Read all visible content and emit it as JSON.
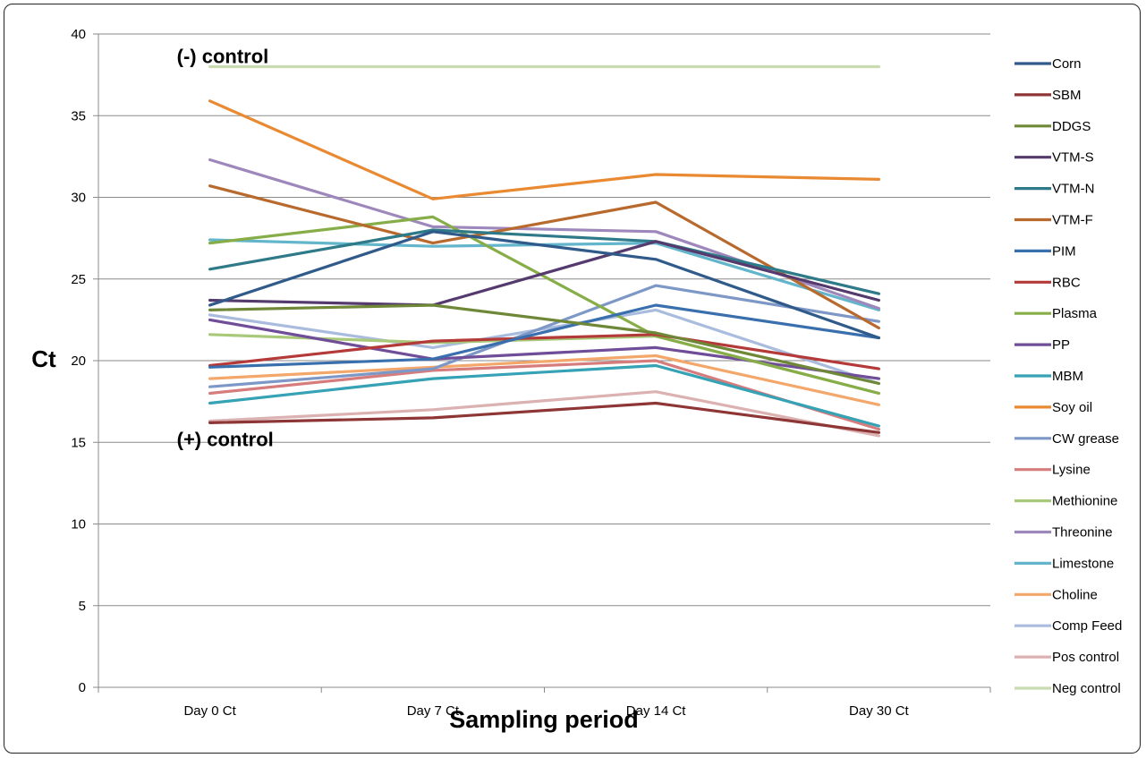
{
  "chart_data": {
    "type": "line",
    "title": "",
    "xlabel": "Sampling period",
    "ylabel": "Ct",
    "ylim": [
      0,
      40
    ],
    "yticks": [
      0,
      5,
      10,
      15,
      20,
      25,
      30,
      35,
      40
    ],
    "categories": [
      "Day 0 Ct",
      "Day 7 Ct",
      "Day 14 Ct",
      "Day 30 Ct"
    ],
    "grid": true,
    "legend_position": "right",
    "annotations": [
      {
        "text": "(-) control",
        "x": "Day 0 Ct",
        "y": 38
      },
      {
        "text": "(+) control",
        "x": "Day 0 Ct",
        "y": 16.3
      }
    ],
    "series": [
      {
        "name": "Corn",
        "color": "#2f5a8a",
        "values": [
          23.4,
          27.9,
          26.2,
          21.4
        ]
      },
      {
        "name": "SBM",
        "color": "#8e3535",
        "values": [
          16.2,
          16.5,
          17.4,
          15.6
        ]
      },
      {
        "name": "DDGS",
        "color": "#6f8838",
        "values": [
          23.1,
          23.4,
          21.7,
          18.6
        ]
      },
      {
        "name": "VTM-S",
        "color": "#553a6e",
        "values": [
          23.7,
          23.4,
          27.3,
          23.7
        ]
      },
      {
        "name": "VTM-N",
        "color": "#2f7a88",
        "values": [
          25.6,
          28.0,
          27.3,
          24.1
        ]
      },
      {
        "name": "VTM-F",
        "color": "#b86a2e",
        "values": [
          30.7,
          27.2,
          29.7,
          22.0
        ]
      },
      {
        "name": "PIM",
        "color": "#3a6fae",
        "values": [
          19.6,
          20.1,
          23.4,
          21.4
        ]
      },
      {
        "name": "RBC",
        "color": "#b43a3a",
        "values": [
          19.7,
          21.2,
          21.6,
          19.5
        ]
      },
      {
        "name": "Plasma",
        "color": "#87ad49",
        "values": [
          27.2,
          28.8,
          21.5,
          18.0
        ]
      },
      {
        "name": "PP",
        "color": "#6f4d98",
        "values": [
          22.5,
          20.1,
          20.8,
          18.9
        ]
      },
      {
        "name": "MBM",
        "color": "#35a2b5",
        "values": [
          17.4,
          18.9,
          19.7,
          16.0
        ]
      },
      {
        "name": "Soy oil",
        "color": "#e98a32",
        "values": [
          35.9,
          29.9,
          31.4,
          31.1
        ]
      },
      {
        "name": "CW grease",
        "color": "#7d98c6",
        "values": [
          18.4,
          19.5,
          24.6,
          22.4
        ]
      },
      {
        "name": "Lysine",
        "color": "#d67c7c",
        "values": [
          18.0,
          19.4,
          20.0,
          15.8
        ]
      },
      {
        "name": "Methionine",
        "color": "#a9c97a",
        "values": [
          21.6,
          21.1,
          21.5,
          18.0
        ]
      },
      {
        "name": "Threonine",
        "color": "#9d87bb",
        "values": [
          32.3,
          28.2,
          27.9,
          23.2
        ]
      },
      {
        "name": "Limestone",
        "color": "#62b5cb",
        "values": [
          27.4,
          27.0,
          27.2,
          23.1
        ]
      },
      {
        "name": "Choline",
        "color": "#f3a76a",
        "values": [
          18.9,
          19.6,
          20.3,
          17.3
        ]
      },
      {
        "name": "Comp Feed",
        "color": "#a9bcdd",
        "values": [
          22.8,
          20.8,
          23.1,
          18.6
        ]
      },
      {
        "name": "Pos control",
        "color": "#dcb1b1",
        "values": [
          16.3,
          17.0,
          18.1,
          15.4
        ]
      },
      {
        "name": "Neg control",
        "color": "#c8dcb0",
        "values": [
          38.0,
          38.0,
          38.0,
          38.0
        ]
      }
    ]
  }
}
